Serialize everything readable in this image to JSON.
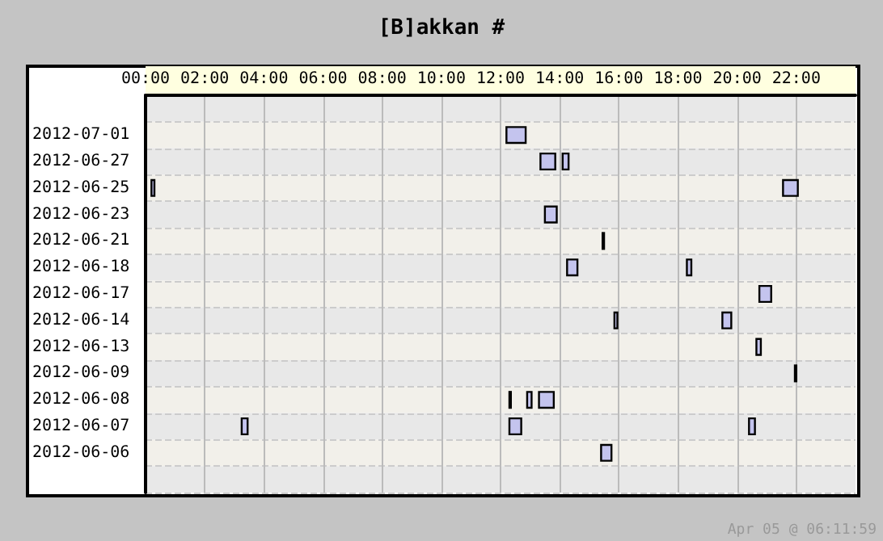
{
  "chart_data": {
    "type": "bar",
    "orientation": "horizontal",
    "title": "[B]akkan #",
    "categories": [
      null,
      "2012-07-01",
      "2012-06-27",
      "2012-06-25",
      "2012-06-23",
      "2012-06-21",
      "2012-06-18",
      "2012-06-17",
      "2012-06-14",
      "2012-06-13",
      "2012-06-09",
      "2012-06-08",
      "2012-06-07",
      "2012-06-06",
      null
    ],
    "series": [
      {
        "color": "#c4c4ee",
        "base": [
          null,
          12.2,
          13.35,
          0.2,
          13.5,
          15.45,
          14.25,
          20.75,
          15.85,
          20.65,
          21.95,
          12.3,
          3.25,
          15.4,
          null
        ],
        "values": [
          null,
          0.65,
          0.5,
          0.1,
          0.4,
          0.05,
          0.35,
          0.4,
          0.1,
          0.15,
          0.05,
          0.05,
          0.2,
          0.35,
          null
        ]
      },
      {
        "color": "#c4c4ee",
        "base": [
          null,
          null,
          14.1,
          21.55,
          null,
          null,
          18.3,
          null,
          19.5,
          null,
          null,
          12.9,
          12.3,
          null,
          null
        ],
        "values": [
          null,
          null,
          0.2,
          0.5,
          null,
          null,
          0.15,
          null,
          0.3,
          null,
          null,
          0.15,
          0.4,
          null,
          null
        ]
      },
      {
        "color": "#c4c4ee",
        "base": [
          null,
          null,
          null,
          null,
          null,
          null,
          null,
          null,
          null,
          null,
          null,
          13.3,
          20.4,
          null,
          null
        ],
        "values": [
          null,
          null,
          null,
          null,
          null,
          null,
          null,
          null,
          null,
          null,
          null,
          0.5,
          0.2,
          null,
          null
        ]
      }
    ],
    "xlim": [
      0,
      24
    ],
    "xticks": [
      {
        "value": 0,
        "label": "00:00"
      },
      {
        "value": 2,
        "label": "02:00"
      },
      {
        "value": 4,
        "label": "04:00"
      },
      {
        "value": 6,
        "label": "06:00"
      },
      {
        "value": 8,
        "label": "08:00"
      },
      {
        "value": 10,
        "label": "10:00"
      },
      {
        "value": 12,
        "label": "12:00"
      },
      {
        "value": 14,
        "label": "14:00"
      },
      {
        "value": 16,
        "label": "16:00"
      },
      {
        "value": 18,
        "label": "18:00"
      },
      {
        "value": 20,
        "label": "20:00"
      },
      {
        "value": 22,
        "label": "22:00"
      }
    ],
    "grid": true,
    "annotations": [
      "Apr 05 @ 06:11:59"
    ]
  }
}
